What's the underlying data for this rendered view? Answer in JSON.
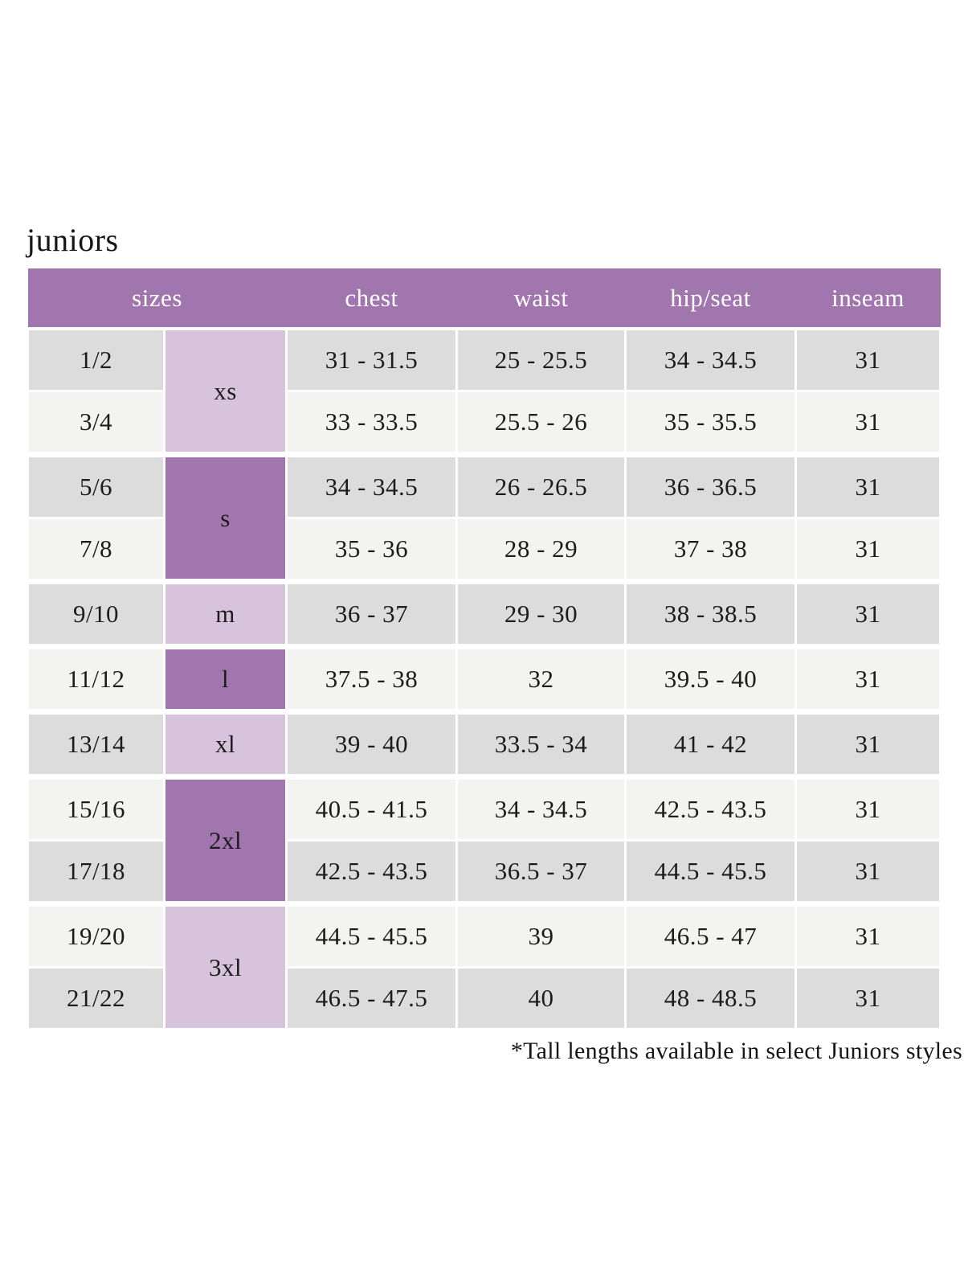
{
  "page": {
    "title": "juniors",
    "footnote": "*Tall lengths available in select Juniors styles"
  },
  "colors": {
    "header_purple": "#a175ad",
    "letter_dark_purple": "#a175ad",
    "letter_light_purple": "#d8c3dc",
    "row_shade_dark": "#dcdcdc",
    "row_shade_light": "#f3f3f2",
    "header_text": "#ffffff",
    "body_text": "#1c1c1c"
  },
  "table": {
    "headers": [
      "sizes",
      "chest",
      "waist",
      "hip/seat",
      "inseam"
    ],
    "rows": [
      {
        "size": "1/2",
        "letter": "xs",
        "letter_span": 2,
        "letter_tone": "light",
        "chest": "31 - 31.5",
        "waist": "25 - 25.5",
        "hip_seat": "34 - 34.5",
        "inseam": "31",
        "shade": "dark",
        "group_start": false
      },
      {
        "size": "3/4",
        "chest": "33 - 33.5",
        "waist": "25.5 - 26",
        "hip_seat": "35 - 35.5",
        "inseam": "31",
        "shade": "light",
        "group_start": false
      },
      {
        "size": "5/6",
        "letter": "s",
        "letter_span": 2,
        "letter_tone": "dark",
        "chest": "34 - 34.5",
        "waist": "26 - 26.5",
        "hip_seat": "36 - 36.5",
        "inseam": "31",
        "shade": "dark",
        "group_start": true
      },
      {
        "size": "7/8",
        "chest": "35 - 36",
        "waist": "28 - 29",
        "hip_seat": "37 - 38",
        "inseam": "31",
        "shade": "light",
        "group_start": false
      },
      {
        "size": "9/10",
        "letter": "m",
        "letter_span": 1,
        "letter_tone": "light",
        "chest": "36 - 37",
        "waist": "29 - 30",
        "hip_seat": "38 - 38.5",
        "inseam": "31",
        "shade": "dark",
        "group_start": true
      },
      {
        "size": "11/12",
        "letter": "l",
        "letter_span": 1,
        "letter_tone": "dark",
        "chest": "37.5 - 38",
        "waist": "32",
        "hip_seat": "39.5 - 40",
        "inseam": "31",
        "shade": "light",
        "group_start": true
      },
      {
        "size": "13/14",
        "letter": "xl",
        "letter_span": 1,
        "letter_tone": "light",
        "chest": "39 - 40",
        "waist": "33.5 - 34",
        "hip_seat": "41 - 42",
        "inseam": "31",
        "shade": "dark",
        "group_start": true
      },
      {
        "size": "15/16",
        "letter": "2xl",
        "letter_span": 2,
        "letter_tone": "dark",
        "chest": "40.5 - 41.5",
        "waist": "34 - 34.5",
        "hip_seat": "42.5 - 43.5",
        "inseam": "31",
        "shade": "light",
        "group_start": true
      },
      {
        "size": "17/18",
        "chest": "42.5 - 43.5",
        "waist": "36.5 - 37",
        "hip_seat": "44.5 - 45.5",
        "inseam": "31",
        "shade": "dark",
        "group_start": false
      },
      {
        "size": "19/20",
        "letter": "3xl",
        "letter_span": 2,
        "letter_tone": "light",
        "chest": "44.5 - 45.5",
        "waist": "39",
        "hip_seat": "46.5 - 47",
        "inseam": "31",
        "shade": "light",
        "group_start": true
      },
      {
        "size": "21/22",
        "chest": "46.5 - 47.5",
        "waist": "40",
        "hip_seat": "48 - 48.5",
        "inseam": "31",
        "shade": "dark",
        "group_start": false
      }
    ]
  }
}
